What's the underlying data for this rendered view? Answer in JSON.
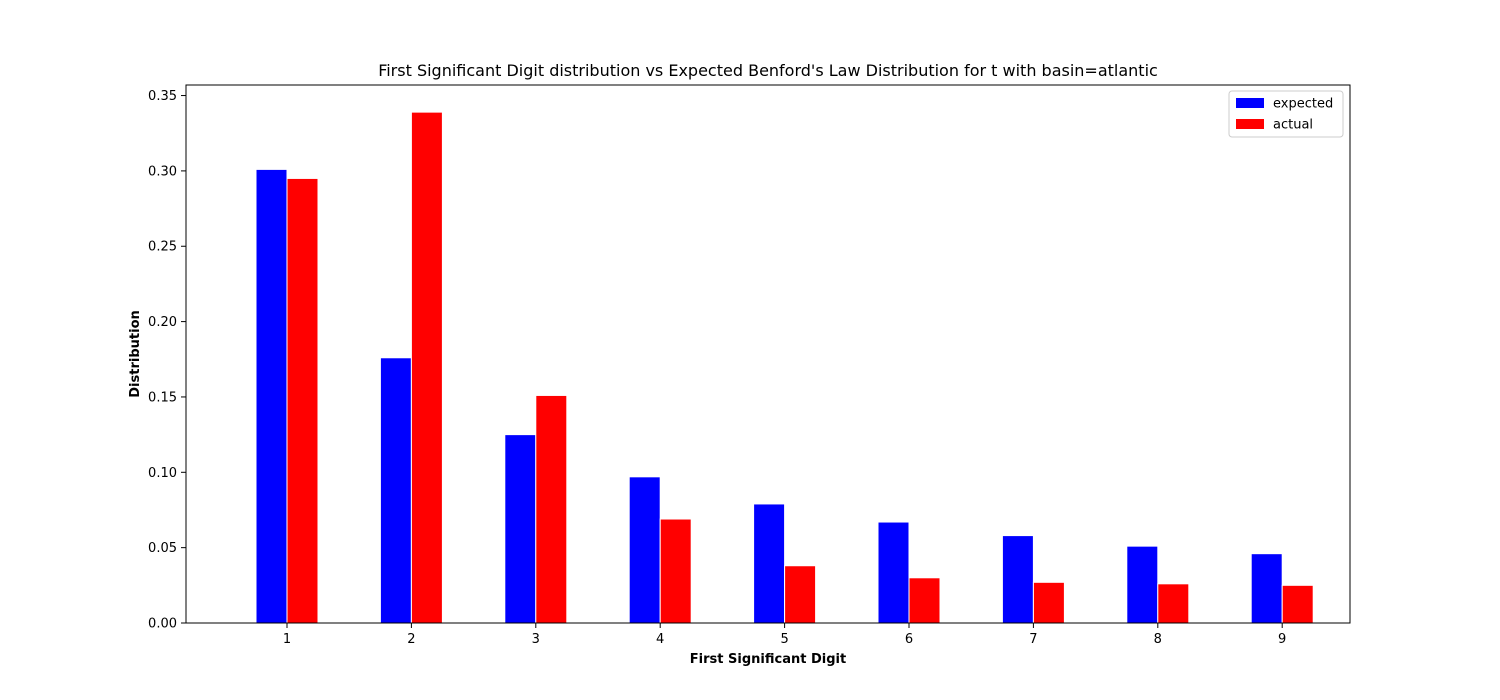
{
  "chart_data": {
    "type": "bar",
    "title": "First Significant Digit distribution vs Expected Benford's Law Distribution for t with basin=atlantic",
    "xlabel": "First Significant Digit",
    "ylabel": "Distribution",
    "categories": [
      "1",
      "2",
      "3",
      "4",
      "5",
      "6",
      "7",
      "8",
      "9"
    ],
    "series": [
      {
        "name": "expected",
        "color": "#0000ff",
        "values": [
          0.301,
          0.176,
          0.125,
          0.097,
          0.079,
          0.067,
          0.058,
          0.051,
          0.046
        ]
      },
      {
        "name": "actual",
        "color": "#ff0000",
        "values": [
          0.295,
          0.339,
          0.151,
          0.069,
          0.038,
          0.03,
          0.027,
          0.026,
          0.025
        ]
      }
    ],
    "ylim": [
      0,
      0.357
    ],
    "yticks": [
      "0.00",
      "0.05",
      "0.10",
      "0.15",
      "0.20",
      "0.25",
      "0.30",
      "0.35"
    ],
    "grid": false,
    "legend_position": "top-right"
  }
}
